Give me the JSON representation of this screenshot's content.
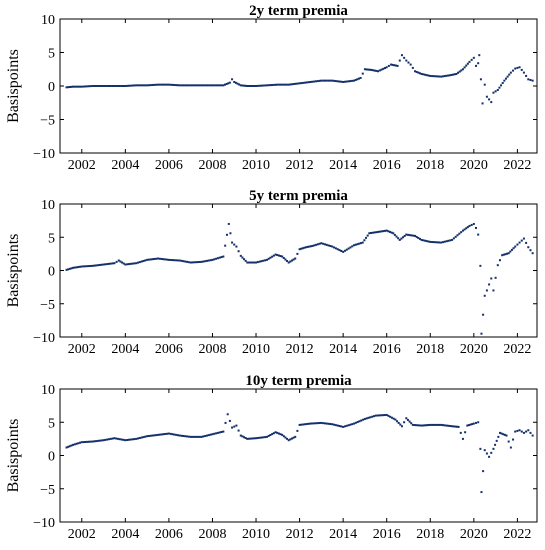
{
  "chart_data": [
    {
      "type": "scatter",
      "title": "2y term premia",
      "xlabel": "",
      "ylabel": "Basispoints",
      "xlim": [
        2001.0,
        2022.9
      ],
      "ylim": [
        -10,
        10
      ],
      "xticks": [
        2002,
        2004,
        2006,
        2008,
        2010,
        2012,
        2014,
        2016,
        2018,
        2020,
        2022
      ],
      "yticks": [
        -10,
        -5,
        0,
        5,
        10
      ],
      "grid": false,
      "marker_color": "#14306a",
      "series": [
        {
          "points": [
            [
              2001.3,
              -0.2
            ],
            [
              2001.6,
              -0.1
            ],
            [
              2002.0,
              -0.1
            ],
            [
              2002.5,
              0.0
            ],
            [
              2003.0,
              0.0
            ],
            [
              2003.5,
              0.0
            ],
            [
              2004.0,
              0.0
            ],
            [
              2004.5,
              0.1
            ],
            [
              2005.0,
              0.1
            ],
            [
              2005.5,
              0.2
            ],
            [
              2006.0,
              0.2
            ],
            [
              2006.5,
              0.1
            ],
            [
              2007.0,
              0.1
            ],
            [
              2007.5,
              0.1
            ],
            [
              2008.0,
              0.1
            ],
            [
              2008.5,
              0.1
            ],
            [
              2008.8,
              0.5
            ],
            [
              2008.9,
              1.0
            ],
            [
              2009.0,
              0.6
            ],
            [
              2009.3,
              0.1
            ],
            [
              2009.6,
              0.0
            ],
            [
              2010.0,
              0.0
            ],
            [
              2010.5,
              0.1
            ],
            [
              2011.0,
              0.2
            ],
            [
              2011.5,
              0.2
            ],
            [
              2012.0,
              0.4
            ],
            [
              2012.5,
              0.6
            ],
            [
              2013.0,
              0.8
            ],
            [
              2013.5,
              0.8
            ],
            [
              2014.0,
              0.6
            ],
            [
              2014.5,
              0.8
            ],
            [
              2014.8,
              1.2
            ],
            [
              2015.0,
              2.5
            ],
            [
              2015.3,
              2.4
            ],
            [
              2015.6,
              2.2
            ],
            [
              2016.0,
              2.8
            ],
            [
              2016.2,
              3.2
            ],
            [
              2016.5,
              3.0
            ],
            [
              2016.7,
              4.6
            ],
            [
              2016.9,
              3.8
            ],
            [
              2017.1,
              3.2
            ],
            [
              2017.3,
              2.2
            ],
            [
              2017.6,
              1.8
            ],
            [
              2018.0,
              1.5
            ],
            [
              2018.5,
              1.4
            ],
            [
              2018.9,
              1.6
            ],
            [
              2019.2,
              1.8
            ],
            [
              2019.5,
              2.5
            ],
            [
              2019.8,
              3.6
            ],
            [
              2020.0,
              4.2
            ],
            [
              2020.1,
              3.0
            ],
            [
              2020.2,
              3.4
            ],
            [
              2020.25,
              4.6
            ],
            [
              2020.4,
              -2.6
            ],
            [
              2020.5,
              0.2
            ],
            [
              2020.6,
              -1.6
            ],
            [
              2020.8,
              -2.4
            ],
            [
              2020.9,
              -1.0
            ],
            [
              2021.1,
              -0.6
            ],
            [
              2021.4,
              0.8
            ],
            [
              2021.7,
              2.0
            ],
            [
              2021.9,
              2.6
            ],
            [
              2022.1,
              2.8
            ],
            [
              2022.3,
              2.0
            ],
            [
              2022.5,
              1.0
            ],
            [
              2022.7,
              0.8
            ]
          ]
        }
      ]
    },
    {
      "type": "scatter",
      "title": "5y term premia",
      "xlabel": "",
      "ylabel": "Basispoints",
      "xlim": [
        2001.0,
        2022.9
      ],
      "ylim": [
        -10,
        10
      ],
      "xticks": [
        2002,
        2004,
        2006,
        2008,
        2010,
        2012,
        2014,
        2016,
        2018,
        2020,
        2022
      ],
      "yticks": [
        -10,
        -5,
        0,
        5,
        10
      ],
      "grid": false,
      "marker_color": "#14306a",
      "series": [
        {
          "points": [
            [
              2001.3,
              0.1
            ],
            [
              2001.6,
              0.4
            ],
            [
              2002.0,
              0.6
            ],
            [
              2002.5,
              0.7
            ],
            [
              2003.0,
              0.9
            ],
            [
              2003.5,
              1.1
            ],
            [
              2003.7,
              1.5
            ],
            [
              2004.0,
              0.9
            ],
            [
              2004.5,
              1.1
            ],
            [
              2005.0,
              1.6
            ],
            [
              2005.5,
              1.8
            ],
            [
              2006.0,
              1.6
            ],
            [
              2006.5,
              1.5
            ],
            [
              2007.0,
              1.2
            ],
            [
              2007.5,
              1.3
            ],
            [
              2008.0,
              1.6
            ],
            [
              2008.5,
              2.1
            ],
            [
              2008.75,
              7.0
            ],
            [
              2008.9,
              4.2
            ],
            [
              2009.1,
              3.6
            ],
            [
              2009.3,
              2.2
            ],
            [
              2009.6,
              1.2
            ],
            [
              2010.0,
              1.2
            ],
            [
              2010.5,
              1.6
            ],
            [
              2010.9,
              2.4
            ],
            [
              2011.2,
              2.1
            ],
            [
              2011.5,
              1.2
            ],
            [
              2011.8,
              1.8
            ],
            [
              2012.0,
              3.2
            ],
            [
              2012.3,
              3.5
            ],
            [
              2012.6,
              3.7
            ],
            [
              2013.0,
              4.1
            ],
            [
              2013.5,
              3.6
            ],
            [
              2014.0,
              2.8
            ],
            [
              2014.5,
              3.8
            ],
            [
              2014.9,
              4.2
            ],
            [
              2015.2,
              5.6
            ],
            [
              2015.6,
              5.8
            ],
            [
              2016.0,
              6.0
            ],
            [
              2016.3,
              5.6
            ],
            [
              2016.6,
              4.6
            ],
            [
              2016.9,
              5.4
            ],
            [
              2017.3,
              5.2
            ],
            [
              2017.6,
              4.6
            ],
            [
              2018.0,
              4.3
            ],
            [
              2018.5,
              4.2
            ],
            [
              2019.0,
              4.6
            ],
            [
              2019.5,
              6.0
            ],
            [
              2019.8,
              6.7
            ],
            [
              2020.0,
              7.0
            ],
            [
              2020.1,
              6.4
            ],
            [
              2020.2,
              5.4
            ],
            [
              2020.3,
              0.7
            ],
            [
              2020.35,
              -9.5
            ],
            [
              2020.5,
              -3.8
            ],
            [
              2020.6,
              -3.0
            ],
            [
              2020.8,
              -1.2
            ],
            [
              2020.9,
              -3.0
            ],
            [
              2021.1,
              0.8
            ],
            [
              2021.3,
              2.3
            ],
            [
              2021.6,
              2.6
            ],
            [
              2021.9,
              3.6
            ],
            [
              2022.1,
              4.2
            ],
            [
              2022.3,
              4.8
            ],
            [
              2022.5,
              3.5
            ],
            [
              2022.7,
              2.6
            ]
          ]
        }
      ]
    },
    {
      "type": "scatter",
      "title": "10y term premia",
      "xlabel": "",
      "ylabel": "Basispoints",
      "xlim": [
        2001.0,
        2022.9
      ],
      "ylim": [
        -10,
        10
      ],
      "xticks": [
        2002,
        2004,
        2006,
        2008,
        2010,
        2012,
        2014,
        2016,
        2018,
        2020,
        2022
      ],
      "yticks": [
        -10,
        -5,
        0,
        5,
        10
      ],
      "grid": false,
      "marker_color": "#14306a",
      "series": [
        {
          "points": [
            [
              2001.3,
              1.2
            ],
            [
              2001.6,
              1.6
            ],
            [
              2002.0,
              2.0
            ],
            [
              2002.5,
              2.1
            ],
            [
              2003.0,
              2.3
            ],
            [
              2003.5,
              2.6
            ],
            [
              2004.0,
              2.3
            ],
            [
              2004.5,
              2.5
            ],
            [
              2005.0,
              2.9
            ],
            [
              2005.5,
              3.1
            ],
            [
              2006.0,
              3.3
            ],
            [
              2006.5,
              3.0
            ],
            [
              2007.0,
              2.8
            ],
            [
              2007.5,
              2.8
            ],
            [
              2008.0,
              3.2
            ],
            [
              2008.5,
              3.6
            ],
            [
              2008.7,
              6.2
            ],
            [
              2008.9,
              4.2
            ],
            [
              2009.1,
              4.5
            ],
            [
              2009.3,
              3.0
            ],
            [
              2009.6,
              2.5
            ],
            [
              2010.0,
              2.6
            ],
            [
              2010.5,
              2.8
            ],
            [
              2010.9,
              3.5
            ],
            [
              2011.2,
              3.1
            ],
            [
              2011.5,
              2.3
            ],
            [
              2011.8,
              2.8
            ],
            [
              2012.0,
              4.6
            ],
            [
              2012.5,
              4.8
            ],
            [
              2013.0,
              4.9
            ],
            [
              2013.5,
              4.7
            ],
            [
              2014.0,
              4.3
            ],
            [
              2014.5,
              4.8
            ],
            [
              2015.0,
              5.5
            ],
            [
              2015.5,
              6.0
            ],
            [
              2016.0,
              6.1
            ],
            [
              2016.4,
              5.4
            ],
            [
              2016.7,
              4.4
            ],
            [
              2016.9,
              5.6
            ],
            [
              2017.2,
              4.6
            ],
            [
              2017.6,
              4.5
            ],
            [
              2018.0,
              4.6
            ],
            [
              2018.5,
              4.6
            ],
            [
              2019.0,
              4.4
            ],
            [
              2019.3,
              4.3
            ],
            [
              2019.5,
              2.5
            ],
            [
              2019.7,
              4.5
            ],
            [
              2020.0,
              4.8
            ],
            [
              2020.2,
              5.0
            ],
            [
              2020.3,
              1.0
            ],
            [
              2020.35,
              -5.5
            ],
            [
              2020.5,
              0.8
            ],
            [
              2020.7,
              -0.2
            ],
            [
              2020.9,
              1.0
            ],
            [
              2021.2,
              3.4
            ],
            [
              2021.5,
              3.0
            ],
            [
              2021.7,
              1.2
            ],
            [
              2021.9,
              3.6
            ],
            [
              2022.1,
              3.8
            ],
            [
              2022.3,
              3.4
            ],
            [
              2022.5,
              3.8
            ],
            [
              2022.7,
              3.0
            ]
          ]
        }
      ]
    }
  ]
}
